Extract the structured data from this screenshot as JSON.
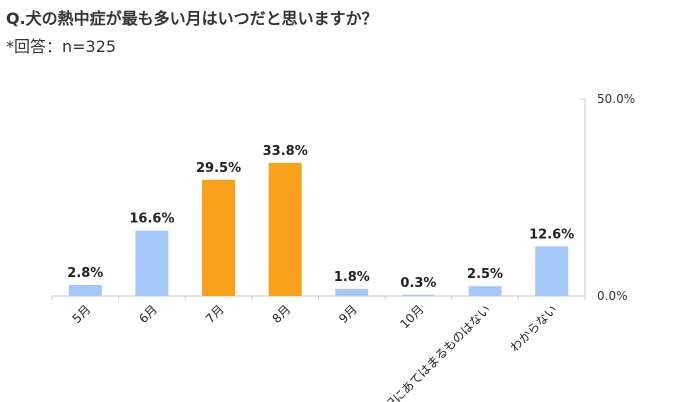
{
  "header": {
    "title": "Q.犬の熱中症が最も多い月はいつだと思いますか？",
    "subtitle": "*回答：n=325"
  },
  "chart_data": {
    "type": "bar",
    "categories": [
      "5月",
      "6月",
      "7月",
      "8月",
      "9月",
      "10月",
      "上記にあてはまるものはない",
      "わからない"
    ],
    "values": [
      2.8,
      16.6,
      29.5,
      33.8,
      1.8,
      0.3,
      2.5,
      12.6
    ],
    "data_labels": [
      "2.8%",
      "16.6%",
      "29.5%",
      "33.8%",
      "1.8%",
      "0.3%",
      "2.5%",
      "12.6%"
    ],
    "highlight": [
      false,
      false,
      true,
      true,
      false,
      false,
      false,
      false
    ],
    "ylim": [
      0,
      50
    ],
    "yticks": [
      {
        "value": 0,
        "label": "0.0%"
      },
      {
        "value": 50,
        "label": "50.0%"
      }
    ],
    "axis_position": "right",
    "grid": false,
    "colors": {
      "normal": "#a3c8f7",
      "highlight": "#f7a11a",
      "axis": "#c8c8c8"
    }
  }
}
